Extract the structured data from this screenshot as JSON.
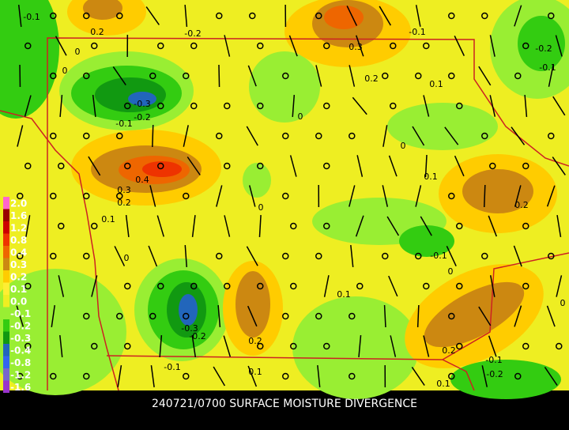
{
  "title": "240721/0700 SURFACE MOISTURE DIVERGENCE",
  "legend": [
    {
      "label": "2.0",
      "color": "#ff66cc"
    },
    {
      "label": "1.6",
      "color": "#990000"
    },
    {
      "label": "1.2",
      "color": "#cc0000"
    },
    {
      "label": "0.8",
      "color": "#ee3300"
    },
    {
      "label": "0.4",
      "color": "#ee6600"
    },
    {
      "label": "0.3",
      "color": "#cc8811"
    },
    {
      "label": "0.2",
      "color": "#ffcc00"
    },
    {
      "label": "0.1",
      "color": "#ffee33"
    },
    {
      "label": "0.0",
      "color": "#eeee22"
    },
    {
      "label": "-0.1",
      "color": "#99ee33"
    },
    {
      "label": "-0.2",
      "color": "#33cc11"
    },
    {
      "label": "-0.3",
      "color": "#119911"
    },
    {
      "label": "-0.4",
      "color": "#2266bb"
    },
    {
      "label": "-0.8",
      "color": "#3366ee"
    },
    {
      "label": "-1.2",
      "color": "#7766cc"
    },
    {
      "label": "-1.6",
      "color": "#9933cc"
    }
  ],
  "contour_labels": [
    "-0.1",
    "0.2",
    "-0.2",
    "0.3",
    "0.2",
    "-0.1",
    "-0.2",
    "-0.1",
    "0",
    "0.1",
    "-0.3",
    "-0.2",
    "-0.1",
    "0",
    "0",
    "0.4",
    "0.3",
    "0.2",
    "0.1",
    "0",
    "0.1",
    "0.2",
    "0",
    "-0.1",
    "0",
    "0",
    "-0.3",
    "-0.2",
    "0.2",
    "-0.1",
    "0.1",
    "0.2",
    "-0.1",
    "-0.2",
    "0.1",
    "0.1",
    "0"
  ]
}
